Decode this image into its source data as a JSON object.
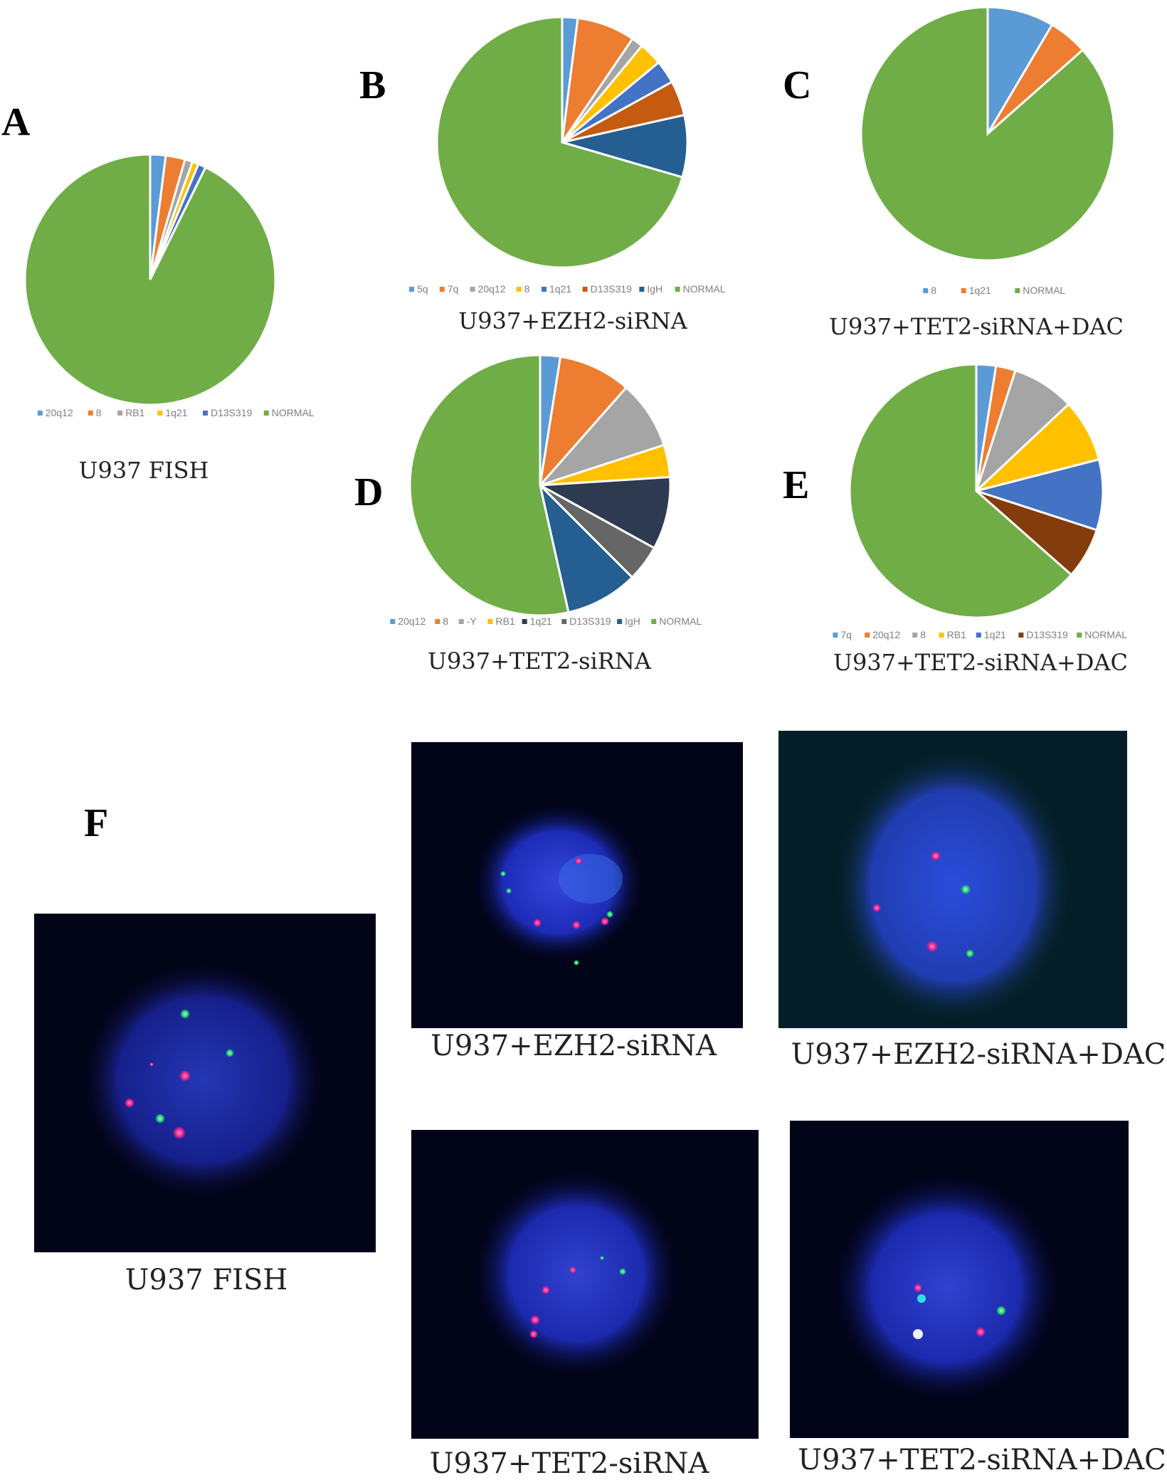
{
  "panel_letters": {
    "A": "A",
    "B": "B",
    "C": "C",
    "D": "D",
    "E": "E",
    "F": "F"
  },
  "chart_data": [
    {
      "panel": "A",
      "type": "pie",
      "caption": "U937  FISH",
      "categories": [
        "20q12",
        "8",
        "RB1",
        "1q21",
        "D13S319",
        "NORMAL"
      ],
      "values": [
        2,
        2.5,
        1,
        0.8,
        1,
        92.7
      ],
      "colors": [
        "#5b9bd5",
        "#ed7d31",
        "#a5a5a5",
        "#ffc000",
        "#4472c4",
        "#70ad47"
      ],
      "legend": "bottom"
    },
    {
      "panel": "B",
      "type": "pie",
      "caption": "U937+EZH2-siRNA",
      "categories": [
        "5q",
        "7q",
        "20q12",
        "8",
        "1q21",
        "D13S319",
        "IgH",
        "NORMAL"
      ],
      "values": [
        2,
        7.5,
        1.5,
        3,
        3,
        4.5,
        8,
        70.5
      ],
      "colors": [
        "#5b9bd5",
        "#ed7d31",
        "#a5a5a5",
        "#ffc000",
        "#4472c4",
        "#c55a11",
        "#255e91",
        "#70ad47"
      ],
      "legend": "bottom"
    },
    {
      "panel": "C",
      "type": "pie",
      "caption": "U937+TET2-siRNA+DAC",
      "categories": [
        "8",
        "1q21",
        "NORMAL"
      ],
      "values": [
        8.5,
        5,
        86.5
      ],
      "colors": [
        "#5b9bd5",
        "#ed7d31",
        "#70ad47"
      ],
      "legend": "bottom"
    },
    {
      "panel": "D",
      "type": "pie",
      "caption": "U937+TET2-siRNA",
      "categories": [
        "20q12",
        "8",
        "-Y",
        "RB1",
        "1q21",
        "D13S319",
        "IgH",
        "NORMAL"
      ],
      "values": [
        2.5,
        9,
        8.5,
        4,
        9,
        4.5,
        9,
        53.5
      ],
      "colors": [
        "#5b9bd5",
        "#ed7d31",
        "#a5a5a5",
        "#ffc000",
        "#2e3a4f",
        "#666666",
        "#255e91",
        "#70ad47"
      ],
      "legend": "bottom"
    },
    {
      "panel": "E",
      "type": "pie",
      "caption": "U937+TET2-siRNA+DAC",
      "categories": [
        "7q",
        "20q12",
        "8",
        "RB1",
        "1q21",
        "D13S319",
        "NORMAL"
      ],
      "values": [
        2.5,
        2.5,
        8,
        8,
        9,
        6.5,
        63.5
      ],
      "colors": [
        "#5b9bd5",
        "#ed7d31",
        "#a5a5a5",
        "#ffc000",
        "#4472c4",
        "#843c0c",
        "#70ad47"
      ],
      "legend": "bottom"
    }
  ],
  "micrographs": [
    {
      "caption": "U937  FISH"
    },
    {
      "caption": "U937+EZH2-siRNA"
    },
    {
      "caption": "U937+EZH2-siRNA+DAC"
    },
    {
      "caption": "U937+TET2-siRNA"
    },
    {
      "caption": "U937+TET2-siRNA+DAC"
    }
  ]
}
